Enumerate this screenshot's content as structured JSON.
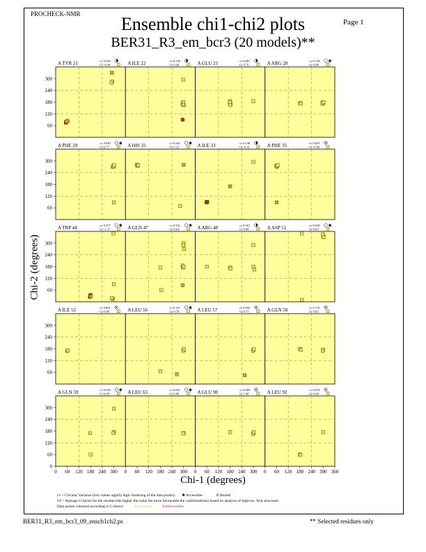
{
  "header": {
    "program": "PROCHECK-NMR",
    "title": "Ensemble chi1-chi2 plots",
    "subtitle": "BER31_R3_em_bcr3 (20 models)**",
    "page": "Page  1"
  },
  "footer": {
    "filename": "BER31_R3_em_bcr3_09_ensch1ch2.ps",
    "note": "** Selected residues only"
  },
  "legend": {
    "cv_line": "cv = Circular Variance (low values signify high clustering of the data points).",
    "accessible_label": "Accessible",
    "buried_label": "Buried",
    "gf_line": "Gf = Average G-factor for the residue (the higher the value the more favourable the conformations) based on analysis of high-res. Xtal structures",
    "colour_line": "Data points coloured according to G-factor:",
    "favourable_label": "Favourable",
    "unfavourable_label": "Unfavourable"
  },
  "colors": {
    "panel_bg": "#ffff9e",
    "point_fav": "#e6e65a",
    "point_mid": "#e0a030",
    "point_unfav": "#c0281e",
    "gridline": "#8a8a3a"
  },
  "chart_data": {
    "type": "scatter",
    "xlabel": "Chi-1 (degrees)",
    "ylabel": "Chi-2 (degrees)",
    "xlim": [
      0,
      360
    ],
    "ylim": [
      0,
      360
    ],
    "x_ticks": [
      0,
      60,
      120,
      180,
      240,
      300,
      360
    ],
    "y_ticks": [
      60,
      120,
      180,
      240,
      300
    ],
    "bottom_y_ticks": [
      0,
      60,
      120,
      180,
      240,
      300
    ],
    "panels": [
      {
        "residue": "A TYR 21",
        "cv": "cv 0.243",
        "gf": "Gf -0.44",
        "access": "half",
        "points": [
          [
            55,
            78,
            "unfav"
          ],
          [
            60,
            83,
            "fav"
          ],
          [
            62,
            85,
            "fav"
          ],
          [
            52,
            75,
            "unfav"
          ],
          [
            57,
            81,
            "mid"
          ],
          [
            290,
            330,
            "mid"
          ],
          [
            292,
            285,
            "fav"
          ],
          [
            288,
            280,
            "fav"
          ]
        ]
      },
      {
        "residue": "A ILE 22",
        "cv": "cv 0.156",
        "gf": "Gf 0.49",
        "access": "half",
        "points": [
          [
            298,
            295,
            "fav"
          ],
          [
            296,
            170,
            "fav"
          ],
          [
            300,
            165,
            "fav"
          ],
          [
            295,
            175,
            "fav"
          ],
          [
            298,
            168,
            "fav"
          ],
          [
            295,
            90,
            "unfav"
          ],
          [
            299,
            180,
            "fav"
          ]
        ]
      },
      {
        "residue": "A GLU 23",
        "cv": "cv 0.067",
        "gf": "Gf 0.76",
        "access": "half",
        "points": [
          [
            180,
            185,
            "fav"
          ],
          [
            178,
            175,
            "fav"
          ],
          [
            182,
            170,
            "fav"
          ],
          [
            180,
            165,
            "fav"
          ],
          [
            179,
            180,
            "fav"
          ],
          [
            300,
            185,
            "fav"
          ]
        ]
      },
      {
        "residue": "A ARG 28",
        "cv": "cv 0.134",
        "gf": "Gf 0.88",
        "access": "star",
        "points": [
          [
            180,
            175,
            "fav"
          ],
          [
            185,
            172,
            "fav"
          ],
          [
            298,
            178,
            "fav"
          ],
          [
            300,
            172,
            "fav"
          ],
          [
            295,
            175,
            "fav"
          ],
          [
            302,
            180,
            "fav"
          ]
        ]
      },
      {
        "residue": "A PHE 29",
        "cv": "cv 0.050",
        "gf": "Gf 0.77",
        "access": "star",
        "points": [
          [
            300,
            275,
            "fav"
          ],
          [
            295,
            270,
            "fav"
          ],
          [
            298,
            272,
            "fav"
          ],
          [
            302,
            278,
            "fav"
          ],
          [
            300,
            88,
            "fav"
          ]
        ]
      },
      {
        "residue": "A HIS 31",
        "cv": "cv 0.241",
        "gf": "Gf 0.23",
        "access": "star",
        "points": [
          [
            58,
            280,
            "fav"
          ],
          [
            62,
            275,
            "fav"
          ],
          [
            65,
            278,
            "fav"
          ],
          [
            300,
            280,
            "mid"
          ],
          [
            282,
            70,
            "fav"
          ]
        ]
      },
      {
        "residue": "A ILE 33",
        "cv": "cv 0.148",
        "gf": "Gf -0.41",
        "access": "half",
        "points": [
          [
            60,
            90,
            "unfav"
          ],
          [
            58,
            88,
            "unfav"
          ],
          [
            62,
            90,
            "unfav"
          ],
          [
            180,
            170,
            "mid"
          ],
          [
            300,
            295,
            "fav"
          ]
        ]
      },
      {
        "residue": "A PHE 35",
        "cv": "cv 0.051",
        "gf": "Gf -0.06",
        "access": "dot",
        "points": [
          [
            58,
            275,
            "fav"
          ],
          [
            62,
            270,
            "fav"
          ],
          [
            60,
            272,
            "fav"
          ],
          [
            65,
            278,
            "fav"
          ],
          [
            60,
            88,
            "mid"
          ]
        ]
      },
      {
        "residue": "A TRP 44",
        "cv": "cv 0.157",
        "gf": "Gf -1.17",
        "access": "star",
        "points": [
          [
            178,
            30,
            "unfav"
          ],
          [
            180,
            35,
            "unfav"
          ],
          [
            176,
            25,
            "unfav"
          ],
          [
            182,
            28,
            "mid"
          ],
          [
            295,
            15,
            "mid"
          ],
          [
            290,
            20,
            "fav"
          ],
          [
            300,
            90,
            "fav"
          ],
          [
            298,
            350,
            "fav"
          ]
        ]
      },
      {
        "residue": "A GLN 47",
        "cv": "cv 0.331",
        "gf": "Gf 0.64",
        "access": "star",
        "points": [
          [
            300,
            300,
            "fav"
          ],
          [
            298,
            290,
            "fav"
          ],
          [
            295,
            185,
            "fav"
          ],
          [
            297,
            175,
            "fav"
          ],
          [
            300,
            180,
            "fav"
          ],
          [
            180,
            175,
            "fav"
          ],
          [
            185,
            60,
            "fav"
          ],
          [
            295,
            85,
            "mid"
          ],
          [
            302,
            270,
            "fav"
          ]
        ]
      },
      {
        "residue": "A ARG 48",
        "cv": "cv 0.501",
        "gf": "Gf 0.48",
        "access": "quarter",
        "points": [
          [
            60,
            180,
            "fav"
          ],
          [
            180,
            175,
            "fav"
          ],
          [
            182,
            170,
            "fav"
          ],
          [
            300,
            290,
            "fav"
          ],
          [
            300,
            180,
            "fav"
          ],
          [
            305,
            165,
            "fav"
          ]
        ]
      },
      {
        "residue": "A ASP 51",
        "cv": "cv 0.018",
        "gf": "Gf 0.83",
        "access": "star",
        "points": [
          [
            300,
            340,
            "fav"
          ],
          [
            302,
            330,
            "fav"
          ],
          [
            298,
            345,
            "fav"
          ],
          [
            190,
            350,
            "fav"
          ],
          [
            190,
            10,
            "fav"
          ]
        ]
      },
      {
        "residue": "A ILE 52",
        "cv": "cv 0.001",
        "gf": "Gf 0.89",
        "access": "dot",
        "points": [
          [
            60,
            170,
            "fav"
          ],
          [
            62,
            172,
            "fav"
          ]
        ]
      },
      {
        "residue": "A LEU 56",
        "cv": "cv 0.111",
        "gf": "Gf 0.78",
        "access": "star",
        "points": [
          [
            300,
            175,
            "fav"
          ],
          [
            298,
            170,
            "fav"
          ],
          [
            302,
            178,
            "fav"
          ],
          [
            180,
            65,
            "fav"
          ],
          [
            265,
            50,
            "mid"
          ]
        ]
      },
      {
        "residue": "A LEU 57",
        "cv": "cv 0.043",
        "gf": "Gf 0.75",
        "access": "dot",
        "points": [
          [
            300,
            175,
            "fav"
          ],
          [
            298,
            170,
            "fav"
          ],
          [
            302,
            178,
            "fav"
          ],
          [
            255,
            45,
            "mid"
          ]
        ]
      },
      {
        "residue": "A GLN 58",
        "cv": "cv 0.176",
        "gf": "Gf 0.85",
        "access": "dot",
        "points": [
          [
            180,
            180,
            "fav"
          ],
          [
            185,
            175,
            "fav"
          ],
          [
            300,
            175,
            "fav"
          ],
          [
            298,
            170,
            "fav"
          ]
        ]
      },
      {
        "residue": "A GLN 59",
        "cv": "cv 0.258",
        "gf": "Gf 0.98",
        "access": "star",
        "points": [
          [
            300,
            295,
            "fav"
          ],
          [
            300,
            175,
            "fav"
          ],
          [
            298,
            170,
            "fav"
          ],
          [
            178,
            170,
            "fav"
          ],
          [
            180,
            60,
            "fav"
          ]
        ]
      },
      {
        "residue": "A LEU 63",
        "cv": "cv 0.001",
        "gf": "Gf 0.88",
        "access": "star",
        "points": [
          [
            300,
            170,
            "fav"
          ],
          [
            298,
            168,
            "fav"
          ]
        ]
      },
      {
        "residue": "A GLU 90",
        "cv": "cv 0.069",
        "gf": "Gf 1.08",
        "access": "dot",
        "points": [
          [
            180,
            175,
            "fav"
          ],
          [
            300,
            170,
            "fav"
          ],
          [
            298,
            165,
            "fav"
          ],
          [
            302,
            175,
            "fav"
          ]
        ]
      },
      {
        "residue": "A LEU 92",
        "cv": "cv 0.074",
        "gf": "Gf 0.49",
        "access": "dot",
        "points": [
          [
            180,
            60,
            "fav"
          ],
          [
            183,
            58,
            "fav"
          ],
          [
            300,
            175,
            "fav"
          ]
        ]
      }
    ]
  }
}
